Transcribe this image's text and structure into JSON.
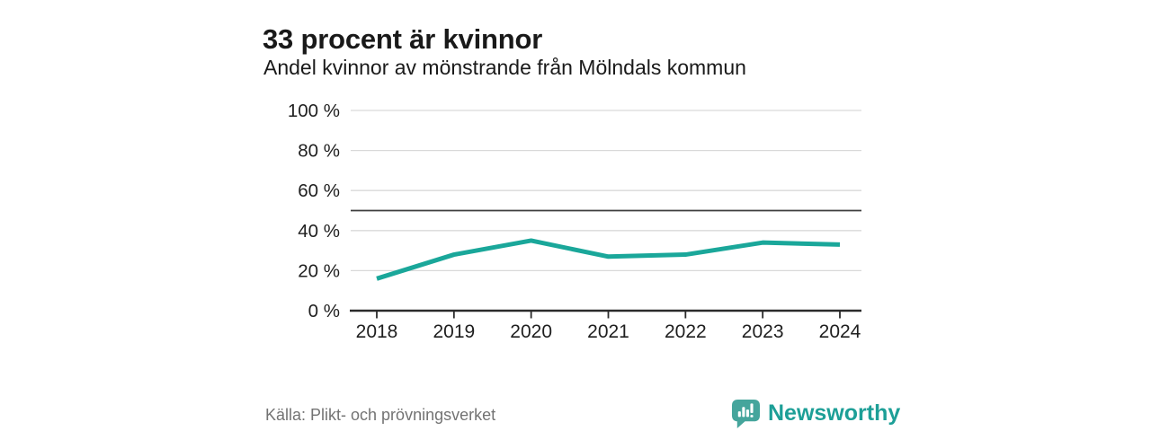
{
  "header": {
    "title": "33 procent är kvinnor",
    "subtitle": "Andel kvinnor av mönstrande från Mölndals kommun"
  },
  "footer": {
    "source": "Källa: Plikt- och prövningsverket",
    "brand_name": "Newsworthy"
  },
  "colors": {
    "line": "#1aa79a",
    "grid": "#d9d9d9",
    "axis": "#2b2b2b",
    "reference_line": "#3e3e3e",
    "tick_text": "#1f1f1f",
    "brand_icon": "#45a59c",
    "brand_text": "#1d9f97"
  },
  "chart_data": {
    "type": "line",
    "title": "33 procent är kvinnor",
    "subtitle": "Andel kvinnor av mönstrande från Mölndals kommun",
    "categories": [
      "2018",
      "2019",
      "2020",
      "2021",
      "2022",
      "2023",
      "2024"
    ],
    "values": [
      16,
      28,
      35,
      27,
      28,
      34,
      33
    ],
    "series_name": "Andel kvinnor",
    "xlabel": "",
    "ylabel": "",
    "ylim": [
      0,
      100
    ],
    "yticks": [
      0,
      20,
      40,
      60,
      80,
      100
    ],
    "ytick_format": "{v} %",
    "reference_line": 50,
    "grid": true,
    "legend": "none",
    "source": "Källa: Plikt- och prövningsverket"
  }
}
